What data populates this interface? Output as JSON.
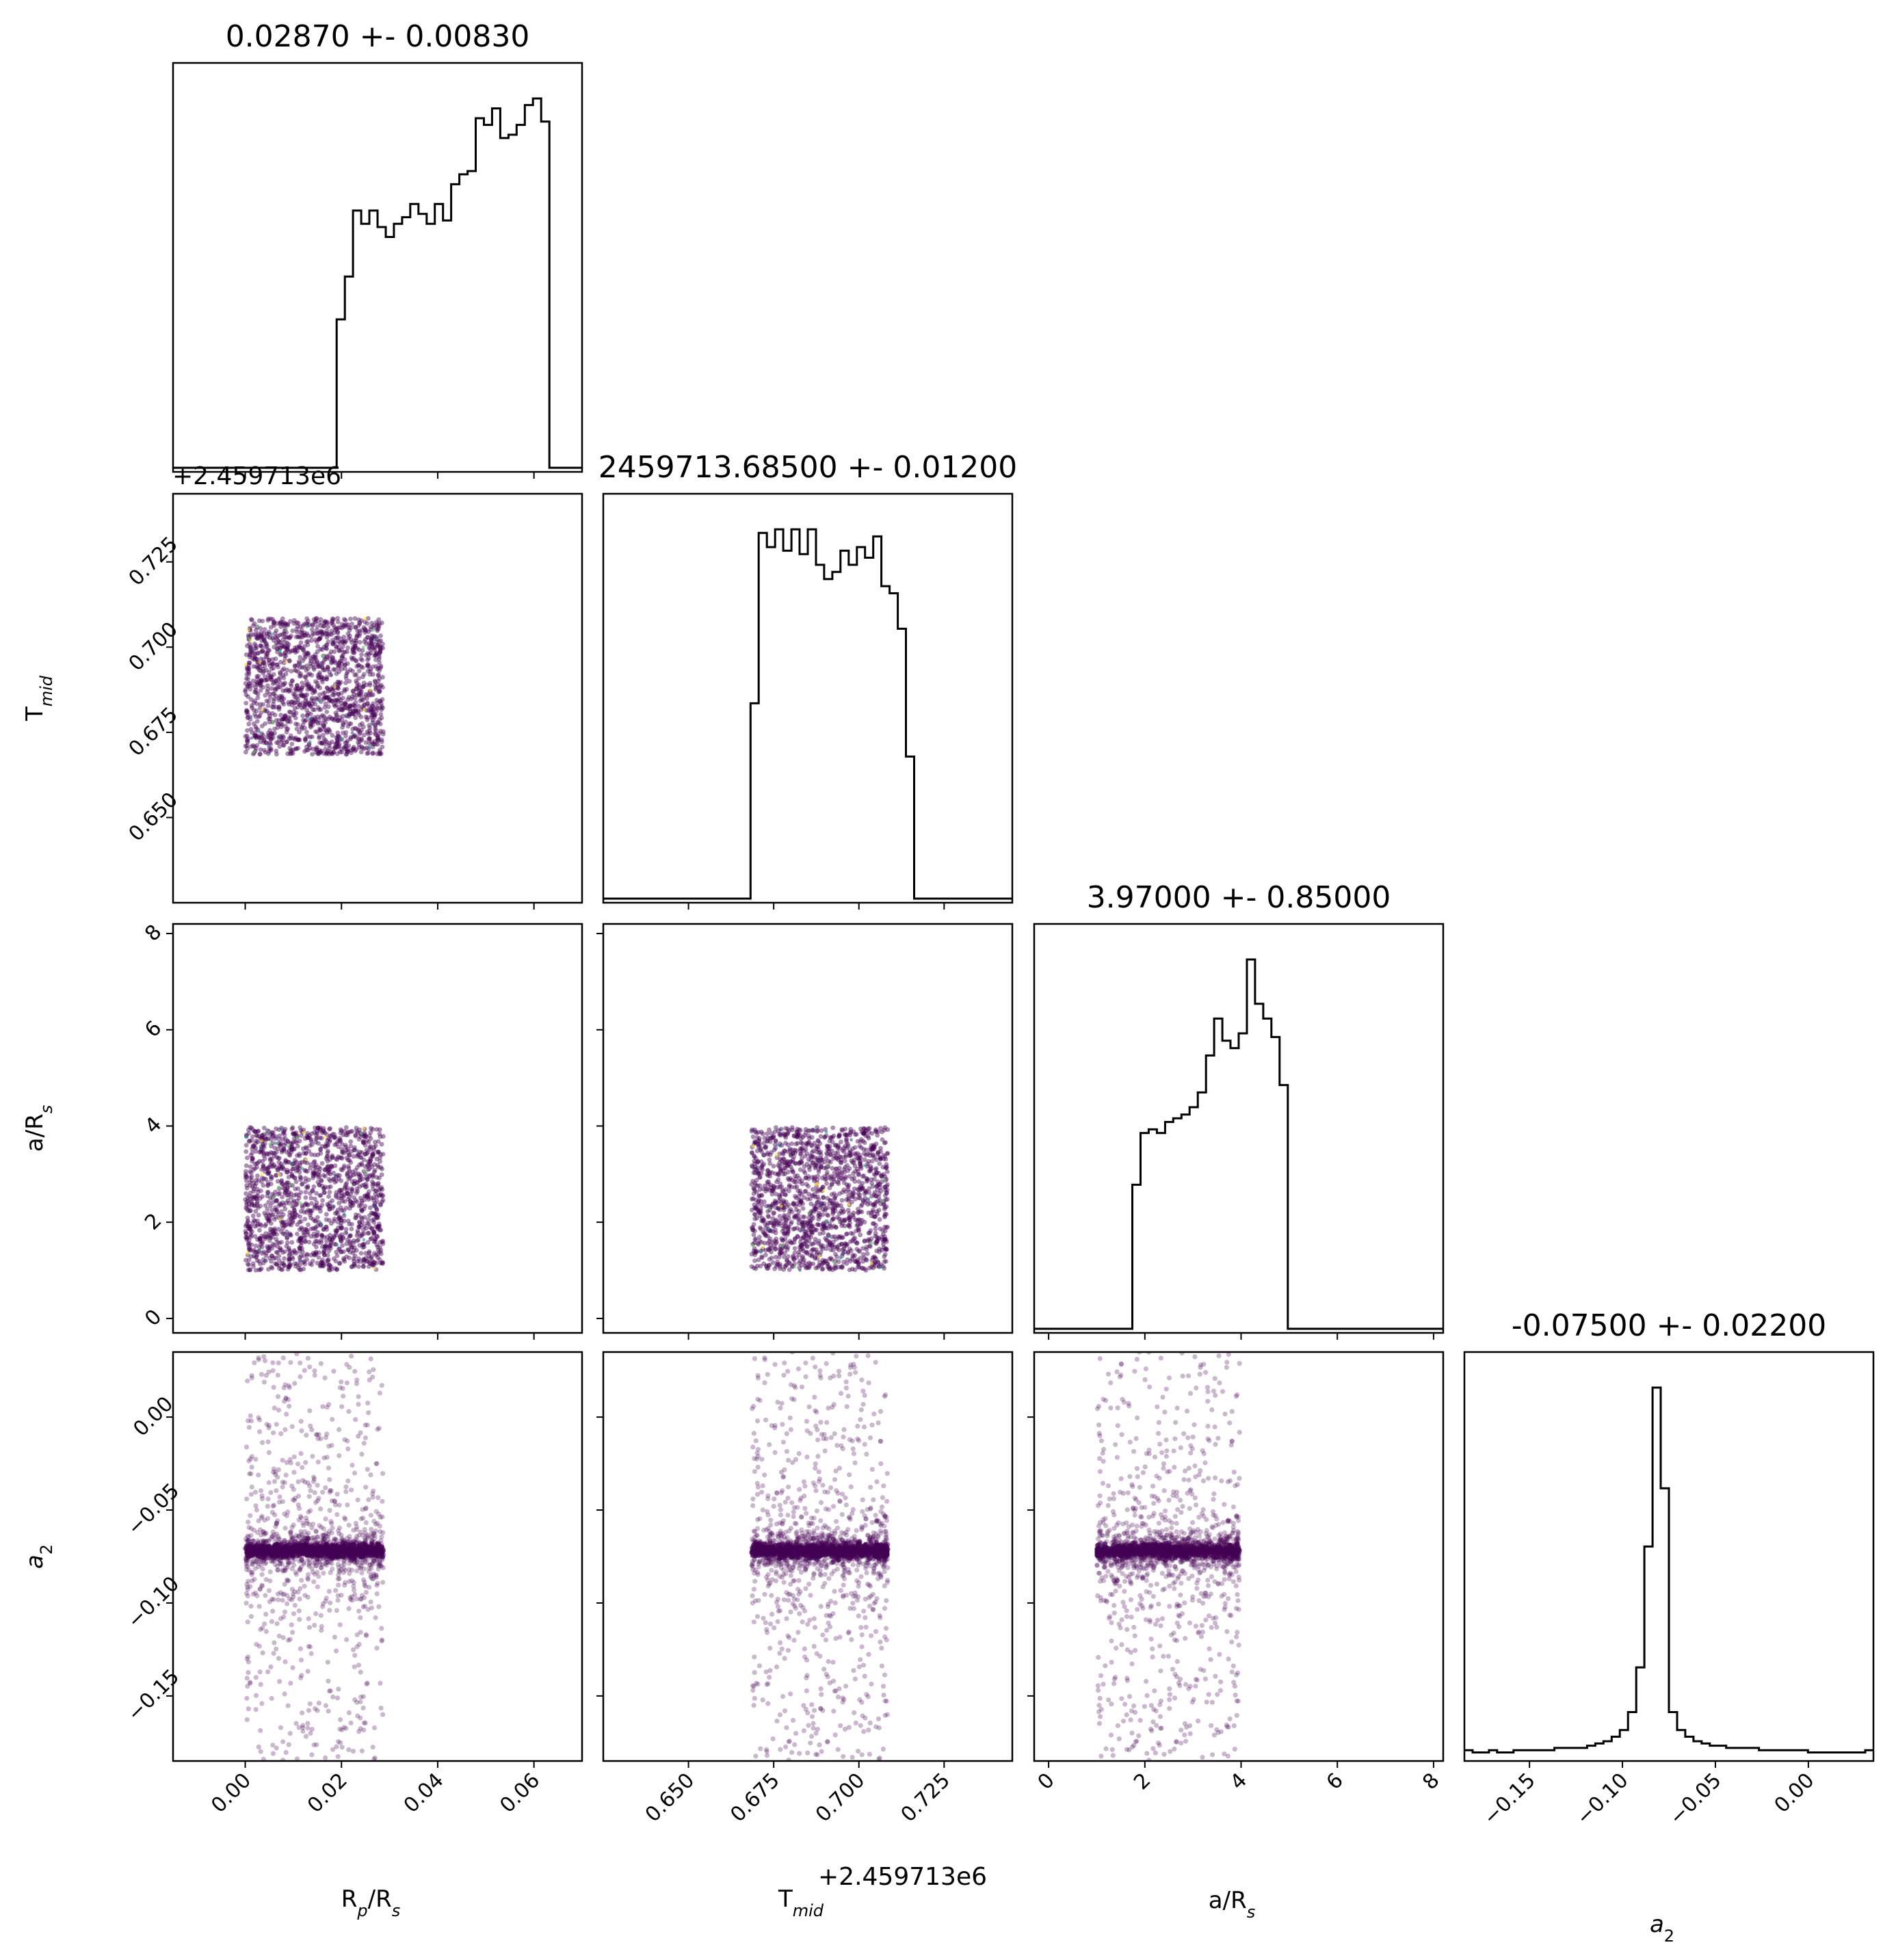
{
  "chart_data": {
    "type": "corner",
    "parameters": [
      {
        "name": "rprs",
        "xlabel_main": "R",
        "xlabel_sub1": "p",
        "xlabel_mid": "/R",
        "xlabel_sub2": "s",
        "title": "0.02870 +- 0.00830",
        "range": [
          -0.015,
          0.07
        ],
        "ticks": [
          0.0,
          0.02,
          0.04,
          0.06
        ],
        "tick_labels": [
          "0.00",
          "0.02",
          "0.04",
          "0.06"
        ],
        "sample_range": [
          0.0,
          0.0287
        ],
        "hist_counts": [
          0,
          0,
          0,
          0,
          0,
          0,
          0,
          0,
          0,
          0,
          0,
          0,
          0,
          0,
          0,
          0,
          0,
          0,
          0,
          0,
          45,
          58,
          78,
          74,
          78,
          73,
          70,
          74,
          76,
          80,
          77,
          74,
          80,
          75,
          86,
          89,
          90,
          106,
          104,
          109,
          100,
          101,
          104,
          110,
          112,
          105,
          0,
          0,
          0,
          0
        ]
      },
      {
        "name": "tmid",
        "xlabel_main": "T",
        "xlabel_sub": "mid",
        "offset": "+2.459713e6",
        "title": "2459713.68500 +- 0.01200",
        "range": [
          0.625,
          0.745
        ],
        "ticks": [
          0.65,
          0.675,
          0.7,
          0.725
        ],
        "tick_labels": [
          "0.650",
          "0.675",
          "0.700",
          "0.725"
        ],
        "sample_range": [
          0.6685,
          0.7085
        ],
        "hist_counts": [
          0,
          0,
          0,
          0,
          0,
          0,
          0,
          0,
          0,
          0,
          0,
          0,
          0,
          0,
          0,
          0,
          0,
          0,
          55,
          103,
          99,
          104,
          98,
          104,
          97,
          104,
          94,
          90,
          92,
          98,
          94,
          99,
          96,
          102,
          88,
          86,
          76,
          40,
          0,
          0,
          0,
          0,
          0,
          0,
          0,
          0,
          0,
          0,
          0,
          0
        ]
      },
      {
        "name": "ars",
        "xlabel_main": "a/R",
        "xlabel_sub": "s",
        "title": "3.97000 +- 0.85000",
        "range": [
          -0.3,
          8.2
        ],
        "ticks": [
          0,
          2,
          4,
          6,
          8
        ],
        "tick_labels": [
          "0",
          "2",
          "4",
          "6",
          "8"
        ],
        "sample_range": [
          1.0,
          3.97
        ],
        "hist_counts": [
          0,
          0,
          0,
          0,
          0,
          0,
          0,
          0,
          0,
          0,
          0,
          0,
          39,
          53,
          54,
          53,
          56,
          57,
          58,
          60,
          64,
          74,
          84,
          78,
          76,
          80,
          100,
          88,
          84,
          79,
          66,
          0,
          0,
          0,
          0,
          0,
          0,
          0,
          0,
          0,
          0,
          0,
          0,
          0,
          0,
          0,
          0,
          0,
          0,
          0
        ]
      },
      {
        "name": "a2",
        "xlabel_main": "a",
        "xlabel_sub": "2",
        "title": "-0.07500 +- 0.02200",
        "range": [
          -0.185,
          0.035
        ],
        "ticks": [
          -0.15,
          -0.1,
          -0.05,
          0.0
        ],
        "tick_labels": [
          "−0.15",
          "−0.10",
          "−0.05",
          "0.00"
        ],
        "sample_center": -0.072,
        "sample_range": [
          -0.185,
          0.035
        ],
        "hist_counts": [
          3,
          2,
          2,
          3,
          2,
          2,
          3,
          3,
          3,
          3,
          3,
          4,
          4,
          4,
          4,
          5,
          6,
          7,
          9,
          12,
          20,
          40,
          94,
          165,
          120,
          20,
          12,
          9,
          7,
          6,
          5,
          5,
          4,
          4,
          4,
          4,
          3,
          3,
          3,
          3,
          3,
          3,
          2,
          2,
          2,
          2,
          2,
          2,
          2,
          3
        ]
      }
    ],
    "left_offset_label": "+2.459713e6",
    "point_color": "#440154",
    "line_color": "#000000"
  }
}
